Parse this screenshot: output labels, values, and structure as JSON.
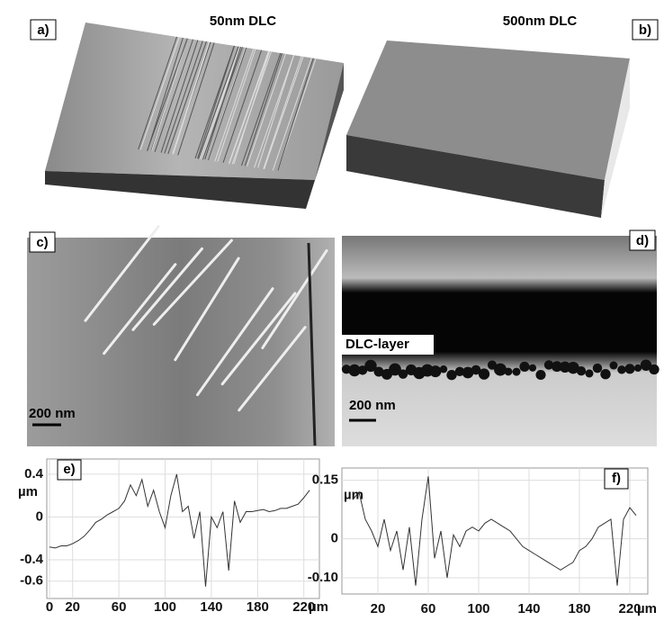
{
  "panels": {
    "a": {
      "label": "a)",
      "title": "50nm DLC"
    },
    "b": {
      "label": "b)",
      "title": "500nm DLC"
    },
    "c": {
      "label": "c)",
      "scale_bar": "200 nm"
    },
    "d": {
      "label": "d)",
      "layer_label": "DLC-layer",
      "scale_bar": "200 nm"
    }
  },
  "chart_data": [
    {
      "type": "line",
      "panel_label": "e)",
      "y_axis_label": "µm",
      "x_axis_unit": "µm",
      "color": "#333333",
      "grid": true,
      "xlim": [
        0,
        228
      ],
      "ylim": [
        -0.72,
        0.5
      ],
      "xticks": [
        0,
        20,
        60,
        100,
        140,
        180,
        220
      ],
      "yticks": [
        0.4,
        0,
        -0.4,
        -0.6
      ],
      "x": [
        0,
        5,
        10,
        15,
        20,
        25,
        30,
        35,
        40,
        45,
        50,
        55,
        60,
        65,
        70,
        75,
        80,
        85,
        90,
        95,
        100,
        105,
        110,
        115,
        120,
        125,
        130,
        135,
        140,
        145,
        150,
        155,
        160,
        165,
        170,
        175,
        180,
        185,
        190,
        195,
        200,
        205,
        210,
        215,
        220,
        225
      ],
      "values": [
        -0.28,
        -0.29,
        -0.27,
        -0.27,
        -0.25,
        -0.22,
        -0.18,
        -0.12,
        -0.05,
        -0.02,
        0.02,
        0.05,
        0.08,
        0.15,
        0.3,
        0.2,
        0.35,
        0.1,
        0.25,
        0.05,
        -0.1,
        0.2,
        0.4,
        0.05,
        0.1,
        -0.2,
        0.05,
        -0.65,
        0,
        -0.1,
        0.05,
        -0.5,
        0.15,
        -0.05,
        0.05,
        0.05,
        0.06,
        0.07,
        0.05,
        0.06,
        0.08,
        0.08,
        0.1,
        0.12,
        0.18,
        0.25
      ]
    },
    {
      "type": "line",
      "panel_label": "f)",
      "y_axis_label": "µm",
      "x_axis_unit": "µm",
      "color": "#333333",
      "grid": true,
      "xlim": [
        0,
        230
      ],
      "ylim": [
        -0.13,
        0.17
      ],
      "xticks": [
        20,
        60,
        100,
        140,
        180,
        220
      ],
      "yticks": [
        0.15,
        0,
        {
          "value": -0.1,
          "label": "-0.10"
        }
      ],
      "x": [
        0,
        5,
        10,
        15,
        20,
        25,
        30,
        35,
        40,
        45,
        50,
        55,
        60,
        65,
        70,
        75,
        80,
        85,
        90,
        95,
        100,
        105,
        110,
        115,
        120,
        125,
        130,
        135,
        140,
        145,
        150,
        155,
        160,
        165,
        170,
        175,
        180,
        185,
        190,
        195,
        200,
        205,
        210,
        215,
        220,
        225
      ],
      "values": [
        0.1,
        0.12,
        0.05,
        0.02,
        -0.02,
        0.05,
        -0.03,
        0.02,
        -0.08,
        0.03,
        -0.12,
        0.05,
        0.16,
        -0.05,
        0.02,
        -0.1,
        0.01,
        -0.02,
        0.02,
        0.03,
        0.02,
        0.04,
        0.05,
        0.04,
        0.03,
        0.02,
        0,
        -0.02,
        -0.03,
        -0.04,
        -0.05,
        -0.06,
        -0.07,
        -0.08,
        -0.07,
        -0.06,
        -0.03,
        -0.02,
        0,
        0.03,
        0.04,
        0.05,
        -0.12,
        0.05,
        0.08,
        0.06
      ]
    }
  ]
}
